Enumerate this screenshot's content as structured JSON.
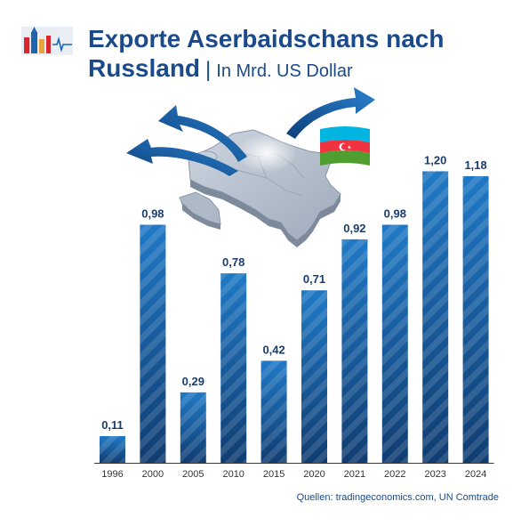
{
  "header": {
    "title_line1": "Exporte Aserbaidschans nach",
    "title_line2": "Russland",
    "separator": "|",
    "subtitle": "In Mrd. US Dollar"
  },
  "illustration": {
    "logo_icon": "kremlin-ecg-logo-icon",
    "map_icon": "azerbaijan-map-icon",
    "flag_icon": "azerbaijan-flag-icon",
    "arrow_icon": "export-arrow-icon",
    "colors": {
      "flag_blue": "#00b5e2",
      "flag_red": "#ef3340",
      "flag_green": "#509e2f",
      "map_grey": "#b9c3cf",
      "arrow_blue": "#1d64b0"
    }
  },
  "chart_data": {
    "type": "bar",
    "categories": [
      "1996",
      "2000",
      "2005",
      "2010",
      "2015",
      "2020",
      "2021",
      "2022",
      "2023",
      "2024"
    ],
    "values": [
      0.11,
      0.98,
      0.29,
      0.78,
      0.42,
      0.71,
      0.92,
      0.98,
      1.2,
      1.18
    ],
    "value_labels": [
      "0,11",
      "0,98",
      "0,29",
      "0,78",
      "0,42",
      "0,71",
      "0,92",
      "0,98",
      "1,20",
      "1,18"
    ],
    "title": "Exporte Aserbaidschans nach Russland",
    "subtitle": "In Mrd. US Dollar",
    "xlabel": "",
    "ylabel": "",
    "ylim": [
      0,
      1.22
    ],
    "grid": false,
    "legend": "none",
    "colors": {
      "bar_top": "#1f72bd",
      "bar_bottom": "#0f3b6f",
      "label": "#1a3d6e",
      "axis": "#333333"
    }
  },
  "footer": {
    "source": "Quellen: tradingeconomics.com, UN Comtrade"
  }
}
